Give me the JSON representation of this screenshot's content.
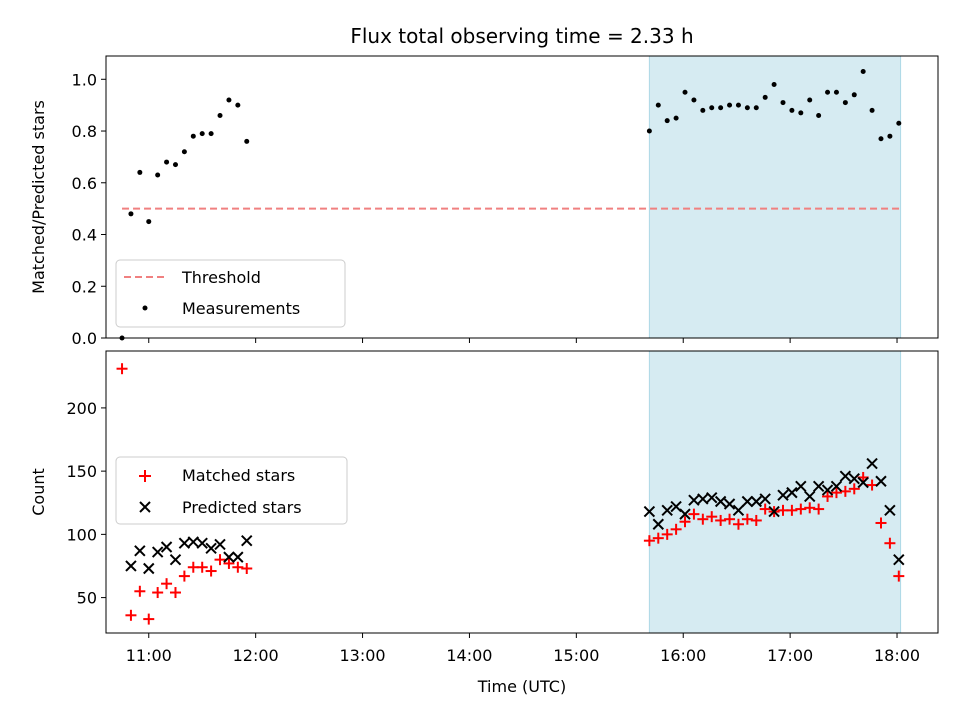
{
  "title": "Flux total observing time = 2.33 h",
  "colors": {
    "measurement": "#000000",
    "threshold": "#f08080",
    "matched": "#ff0000",
    "predicted": "#000000",
    "shade": "#add8e6"
  },
  "chart_data": [
    {
      "type": "scatter",
      "ylabel": "Matched/Predicted stars",
      "xlabel": "",
      "ylim": [
        0,
        1.09
      ],
      "yticks": [
        "0.0",
        "0.2",
        "0.4",
        "0.6",
        "0.8",
        "1.0"
      ],
      "xticks": [
        "11:00",
        "12:00",
        "13:00",
        "14:00",
        "15:00",
        "16:00",
        "17:00",
        "18:00"
      ],
      "xlim": [
        "10:36",
        "18:23"
      ],
      "shaded_region": [
        "15:41",
        "18:02"
      ],
      "legend_position": "lower left",
      "threshold": {
        "name": "Threshold",
        "value": 0.5,
        "x": [
          "10:45",
          "18:02"
        ]
      },
      "series": [
        {
          "name": "Measurements",
          "x": [
            "10:45",
            "10:50",
            "10:55",
            "11:00",
            "11:05",
            "11:10",
            "11:15",
            "11:20",
            "11:25",
            "11:30",
            "11:35",
            "11:40",
            "11:45",
            "11:50",
            "11:55",
            "15:41",
            "15:46",
            "15:51",
            "15:56",
            "16:01",
            "16:06",
            "16:11",
            "16:16",
            "16:21",
            "16:26",
            "16:31",
            "16:36",
            "16:41",
            "16:46",
            "16:51",
            "16:56",
            "17:01",
            "17:06",
            "17:11",
            "17:16",
            "17:21",
            "17:26",
            "17:31",
            "17:36",
            "17:41",
            "17:46",
            "17:51",
            "17:56",
            "18:01"
          ],
          "y": [
            0.0,
            0.48,
            0.64,
            0.45,
            0.63,
            0.68,
            0.67,
            0.72,
            0.78,
            0.79,
            0.79,
            0.86,
            0.92,
            0.9,
            0.76,
            0.8,
            0.9,
            0.84,
            0.85,
            0.95,
            0.92,
            0.88,
            0.89,
            0.89,
            0.9,
            0.9,
            0.89,
            0.89,
            0.93,
            0.98,
            0.91,
            0.88,
            0.87,
            0.92,
            0.86,
            0.95,
            0.95,
            0.91,
            0.94,
            1.03,
            0.88,
            0.77,
            0.78,
            0.83
          ]
        }
      ]
    },
    {
      "type": "scatter",
      "ylabel": "Count",
      "xlabel": "Time (UTC)",
      "ylim": [
        22,
        245
      ],
      "yticks": [
        "50",
        "100",
        "150",
        "200"
      ],
      "xticks": [
        "11:00",
        "12:00",
        "13:00",
        "14:00",
        "15:00",
        "16:00",
        "17:00",
        "18:00"
      ],
      "xlim": [
        "10:36",
        "18:23"
      ],
      "shaded_region": [
        "15:41",
        "18:02"
      ],
      "legend_position": "center left",
      "series": [
        {
          "name": "Matched stars",
          "x": [
            "10:45",
            "10:50",
            "10:55",
            "11:00",
            "11:05",
            "11:10",
            "11:15",
            "11:20",
            "11:25",
            "11:30",
            "11:35",
            "11:40",
            "11:45",
            "11:50",
            "11:55",
            "15:41",
            "15:46",
            "15:51",
            "15:56",
            "16:01",
            "16:06",
            "16:11",
            "16:16",
            "16:21",
            "16:26",
            "16:31",
            "16:36",
            "16:41",
            "16:46",
            "16:51",
            "16:56",
            "17:01",
            "17:06",
            "17:11",
            "17:16",
            "17:21",
            "17:26",
            "17:31",
            "17:36",
            "17:41",
            "17:46",
            "17:51",
            "17:56",
            "18:01"
          ],
          "y": [
            231,
            36,
            55,
            33,
            54,
            61,
            54,
            67,
            74,
            74,
            71,
            80,
            77,
            74,
            73,
            95,
            97,
            100,
            104,
            110,
            116,
            112,
            114,
            111,
            112,
            108,
            112,
            111,
            120,
            118,
            119,
            119,
            120,
            121,
            120,
            130,
            133,
            134,
            136,
            145,
            139,
            109,
            93,
            67
          ]
        },
        {
          "name": "Predicted stars",
          "x": [
            "10:50",
            "10:55",
            "11:00",
            "11:05",
            "11:10",
            "11:15",
            "11:20",
            "11:25",
            "11:30",
            "11:35",
            "11:40",
            "11:45",
            "11:50",
            "11:55",
            "15:41",
            "15:46",
            "15:51",
            "15:56",
            "16:01",
            "16:06",
            "16:11",
            "16:16",
            "16:21",
            "16:26",
            "16:31",
            "16:36",
            "16:41",
            "16:46",
            "16:51",
            "16:56",
            "17:01",
            "17:06",
            "17:11",
            "17:16",
            "17:21",
            "17:26",
            "17:31",
            "17:36",
            "17:41",
            "17:46",
            "17:51",
            "17:56",
            "18:01"
          ],
          "y": [
            75,
            87,
            73,
            86,
            90,
            80,
            93,
            94,
            93,
            89,
            92,
            82,
            82,
            95,
            118,
            108,
            119,
            122,
            116,
            127,
            128,
            129,
            126,
            124,
            119,
            126,
            126,
            128,
            118,
            131,
            133,
            138,
            130,
            138,
            135,
            138,
            146,
            144,
            141,
            156,
            142,
            119,
            80
          ]
        }
      ]
    }
  ]
}
